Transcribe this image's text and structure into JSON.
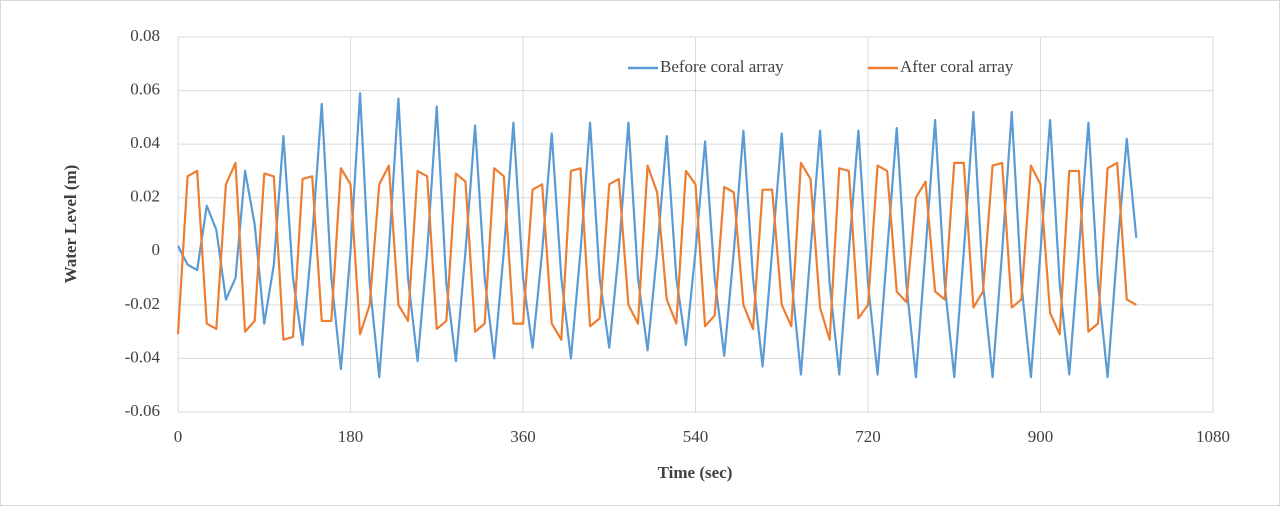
{
  "chart_data": {
    "type": "line",
    "x_label": "Time (sec)",
    "y_label": "Water Level (m)",
    "x": [
      0,
      10,
      20,
      30,
      40,
      50,
      60,
      70,
      80,
      90,
      100,
      110,
      120,
      130,
      140,
      150,
      160,
      170,
      180,
      190,
      200,
      210,
      220,
      230,
      240,
      250,
      260,
      270,
      280,
      290,
      300,
      310,
      320,
      330,
      340,
      350,
      360,
      370,
      380,
      390,
      400,
      410,
      420,
      430,
      440,
      450,
      460,
      470,
      480,
      490,
      500,
      510,
      520,
      530,
      540,
      550,
      560,
      570,
      580,
      590,
      600,
      610,
      620,
      630,
      640,
      650,
      660,
      670,
      680,
      690,
      700,
      710,
      720,
      730,
      740,
      750,
      760,
      770,
      780,
      790,
      800,
      810,
      820,
      830,
      840,
      850,
      860,
      870,
      880,
      890,
      900,
      910,
      920,
      930,
      940,
      950,
      960,
      970,
      980,
      990,
      1000
    ],
    "series": [
      {
        "name": "Before coral array",
        "color": "#5b9bd5",
        "values": [
          0.002,
          -0.005,
          -0.007,
          0.017,
          0.008,
          -0.018,
          -0.01,
          0.03,
          0.01,
          -0.027,
          -0.005,
          0.043,
          -0.01,
          -0.035,
          0.005,
          0.055,
          -0.01,
          -0.044,
          0.0,
          0.059,
          -0.012,
          -0.047,
          0.0,
          0.057,
          -0.01,
          -0.041,
          0.0,
          0.054,
          -0.012,
          -0.041,
          0.0,
          0.047,
          -0.01,
          -0.04,
          0.0,
          0.048,
          -0.01,
          -0.036,
          0.0,
          0.044,
          -0.01,
          -0.04,
          0.0,
          0.048,
          -0.01,
          -0.036,
          0.0,
          0.048,
          -0.01,
          -0.037,
          0.0,
          0.043,
          -0.01,
          -0.035,
          0.0,
          0.041,
          -0.01,
          -0.039,
          0.0,
          0.045,
          -0.01,
          -0.043,
          0.0,
          0.044,
          -0.01,
          -0.046,
          0.0,
          0.045,
          -0.012,
          -0.046,
          0.0,
          0.045,
          -0.012,
          -0.046,
          0.0,
          0.046,
          -0.012,
          -0.047,
          0.0,
          0.049,
          -0.012,
          -0.047,
          0.0,
          0.052,
          -0.012,
          -0.047,
          0.0,
          0.052,
          -0.012,
          -0.047,
          0.0,
          0.049,
          -0.012,
          -0.046,
          0.0,
          0.048,
          -0.012,
          -0.047,
          0.0,
          0.042,
          0.005
        ]
      },
      {
        "name": "After coral array",
        "color": "#ed7d31",
        "values": [
          -0.031,
          0.028,
          0.03,
          -0.027,
          -0.029,
          0.025,
          0.033,
          -0.03,
          -0.026,
          0.029,
          0.028,
          -0.033,
          -0.032,
          0.027,
          0.028,
          -0.026,
          -0.026,
          0.031,
          0.025,
          -0.031,
          -0.02,
          0.025,
          0.032,
          -0.02,
          -0.026,
          0.03,
          0.028,
          -0.029,
          -0.026,
          0.029,
          0.026,
          -0.03,
          -0.027,
          0.031,
          0.028,
          -0.027,
          -0.027,
          0.023,
          0.025,
          -0.027,
          -0.033,
          0.03,
          0.031,
          -0.028,
          -0.025,
          0.025,
          0.027,
          -0.02,
          -0.027,
          0.032,
          0.022,
          -0.018,
          -0.027,
          0.03,
          0.025,
          -0.028,
          -0.024,
          0.024,
          0.022,
          -0.02,
          -0.029,
          0.023,
          0.023,
          -0.02,
          -0.028,
          0.033,
          0.027,
          -0.021,
          -0.033,
          0.031,
          0.03,
          -0.025,
          -0.02,
          0.032,
          0.03,
          -0.015,
          -0.019,
          0.02,
          0.026,
          -0.015,
          -0.018,
          0.033,
          0.033,
          -0.021,
          -0.015,
          0.032,
          0.033,
          -0.021,
          -0.018,
          0.032,
          0.025,
          -0.023,
          -0.031,
          0.03,
          0.03,
          -0.03,
          -0.027,
          0.031,
          0.033,
          -0.018,
          -0.02
        ]
      }
    ],
    "xlim": [
      0,
      1080
    ],
    "xticks": [
      0,
      180,
      360,
      540,
      720,
      900,
      1080
    ],
    "ylim": [
      -0.06,
      0.08
    ],
    "yticks": [
      -0.06,
      -0.04,
      -0.02,
      0,
      0.02,
      0.04,
      0.06,
      0.08
    ],
    "grid": true,
    "legend": "top"
  }
}
